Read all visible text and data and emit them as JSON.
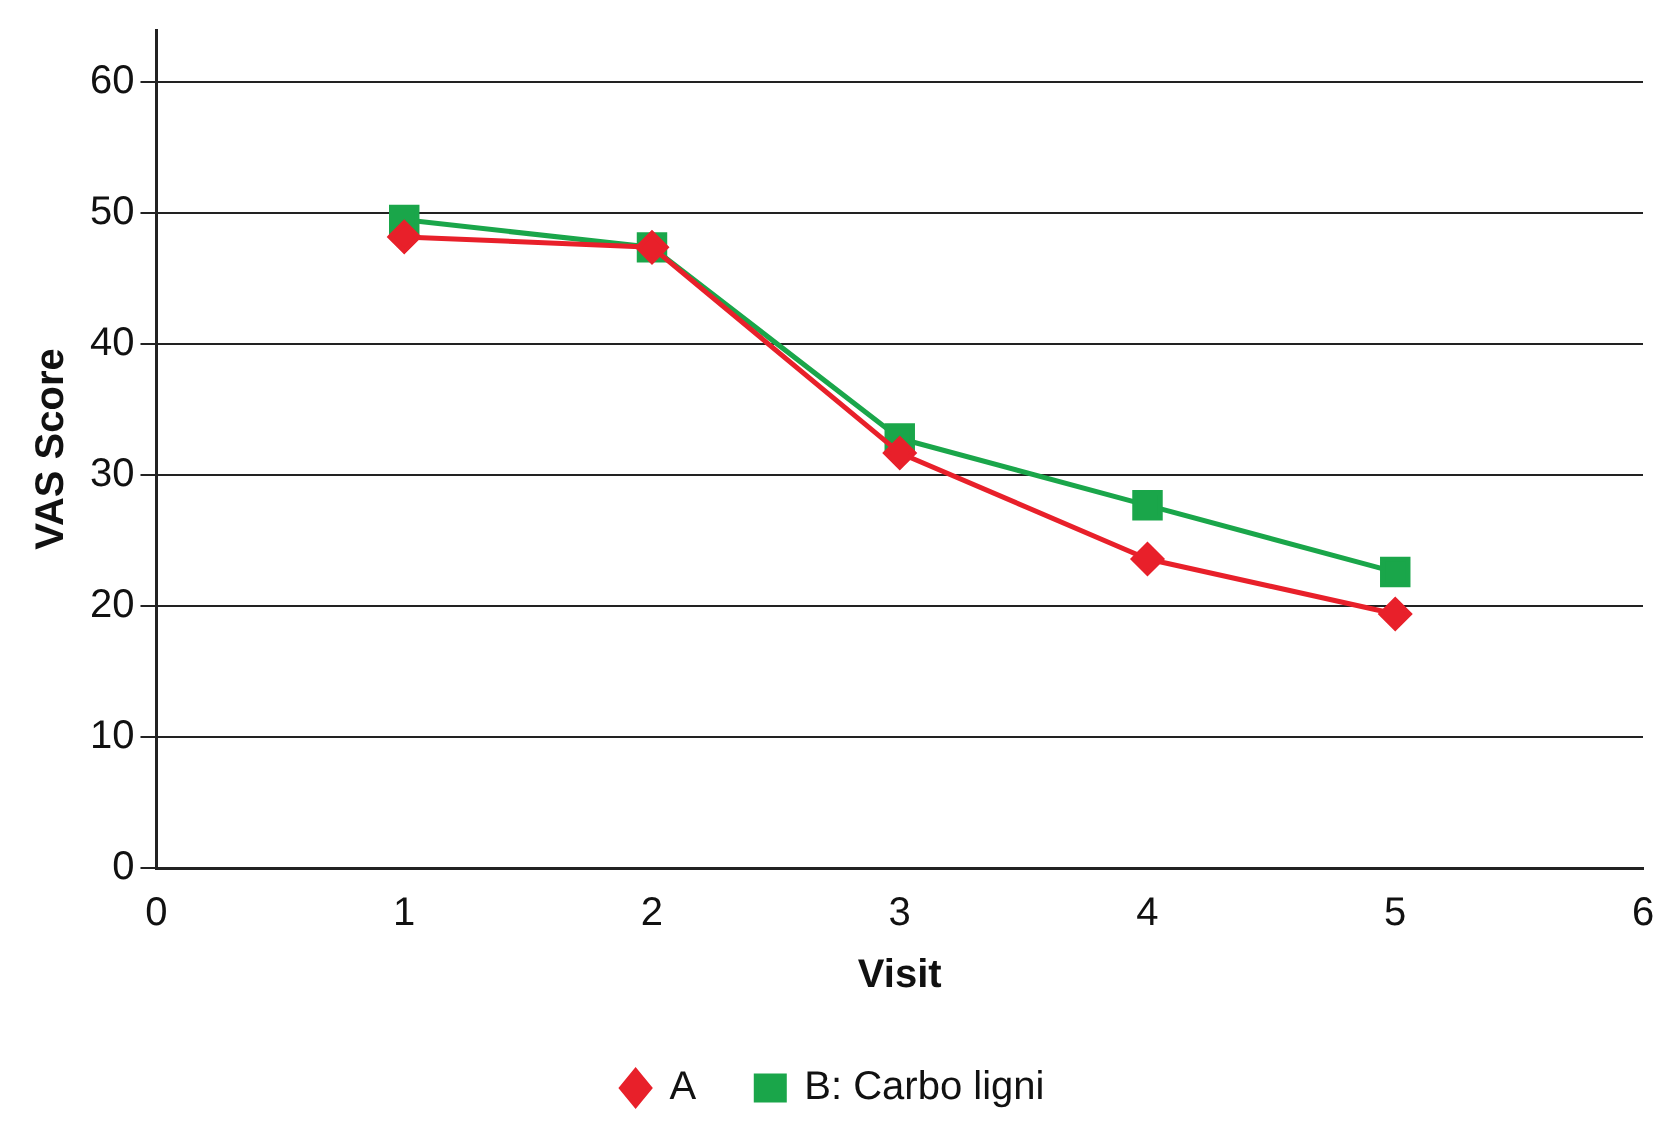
{
  "chart_data": {
    "type": "line",
    "xlabel": "Visit",
    "ylabel": "VAS Score",
    "x": [
      1,
      2,
      3,
      4,
      5
    ],
    "series": [
      {
        "name": "A",
        "color": "#e8202a",
        "marker": "diamond",
        "values": [
          48.2,
          47.4,
          31.7,
          23.6,
          19.4
        ]
      },
      {
        "name": "B: Carbo ligni",
        "color": "#1aa64a",
        "marker": "square",
        "values": [
          49.5,
          47.4,
          32.8,
          27.7,
          22.6
        ]
      }
    ],
    "xlim": [
      0,
      6
    ],
    "xticks": [
      0,
      1,
      2,
      3,
      4,
      5,
      6
    ],
    "ylim": [
      0,
      64
    ],
    "yticks": [
      0,
      10,
      20,
      30,
      40,
      50,
      60
    ],
    "grid": "y",
    "legend": "bottom",
    "line_style": "solid"
  }
}
